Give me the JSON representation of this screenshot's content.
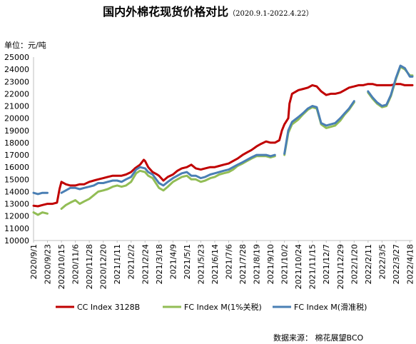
{
  "chart_data": {
    "type": "line",
    "title": "国内外棉花现货价格对比",
    "subtitle": "（2020.9.1-2022.4.22）",
    "ylabel": "单位：元/吨",
    "ylim": [
      10000,
      25000
    ],
    "y_ticks": [
      10000,
      11000,
      12000,
      13000,
      14000,
      15000,
      16000,
      17000,
      18000,
      19000,
      20000,
      21000,
      22000,
      23000,
      24000,
      25000
    ],
    "x_range": [
      "2020-09-01",
      "2022-04-22"
    ],
    "x_ticks": [
      "2020/9/1",
      "2020/9/23",
      "2020/10/15",
      "2020/11/6",
      "2020/11/28",
      "2020/12/20",
      "2021/1/11",
      "2021/2/2",
      "2021/2/24",
      "2021/3/18",
      "2021/4/9",
      "2021/5/1",
      "2021/5/23",
      "2021/6/14",
      "2021/7/6",
      "2021/7/28",
      "2021/8/19",
      "2021/9/10",
      "2021/10/2",
      "2021/10/24",
      "2021/11/15",
      "2021/12/7",
      "2021/12/29",
      "2022/1/20",
      "2022/2/11",
      "2022/3/5",
      "2022/3/27",
      "2022/4/18"
    ],
    "grid": false,
    "legend_position": "bottom",
    "series": [
      {
        "name": "CC Index 3128B",
        "color": "#c00000",
        "points": [
          [
            "2020-09-01",
            12850
          ],
          [
            "2020-09-08",
            12800
          ],
          [
            "2020-09-15",
            12900
          ],
          [
            "2020-09-23",
            13000
          ],
          [
            "2020-10-01",
            13000
          ],
          [
            "2020-10-08",
            13100
          ],
          [
            "2020-10-12",
            14200
          ],
          [
            "2020-10-15",
            14800
          ],
          [
            "2020-10-22",
            14600
          ],
          [
            "2020-10-29",
            14500
          ],
          [
            "2020-11-06",
            14500
          ],
          [
            "2020-11-13",
            14600
          ],
          [
            "2020-11-20",
            14600
          ],
          [
            "2020-11-28",
            14800
          ],
          [
            "2020-12-05",
            14900
          ],
          [
            "2020-12-12",
            15000
          ],
          [
            "2020-12-20",
            15100
          ],
          [
            "2020-12-27",
            15200
          ],
          [
            "2021-01-04",
            15300
          ],
          [
            "2021-01-11",
            15300
          ],
          [
            "2021-01-18",
            15300
          ],
          [
            "2021-01-25",
            15400
          ],
          [
            "2021-02-02",
            15600
          ],
          [
            "2021-02-08",
            15900
          ],
          [
            "2021-02-16",
            16200
          ],
          [
            "2021-02-22",
            16600
          ],
          [
            "2021-02-24",
            16500
          ],
          [
            "2021-03-01",
            16000
          ],
          [
            "2021-03-08",
            15600
          ],
          [
            "2021-03-15",
            15400
          ],
          [
            "2021-03-18",
            15300
          ],
          [
            "2021-03-25",
            14900
          ],
          [
            "2021-04-01",
            15200
          ],
          [
            "2021-04-09",
            15400
          ],
          [
            "2021-04-16",
            15700
          ],
          [
            "2021-04-23",
            15900
          ],
          [
            "2021-05-01",
            16000
          ],
          [
            "2021-05-08",
            16200
          ],
          [
            "2021-05-15",
            15900
          ],
          [
            "2021-05-23",
            15800
          ],
          [
            "2021-05-30",
            15900
          ],
          [
            "2021-06-07",
            16000
          ],
          [
            "2021-06-14",
            16000
          ],
          [
            "2021-06-21",
            16100
          ],
          [
            "2021-06-28",
            16200
          ],
          [
            "2021-07-06",
            16300
          ],
          [
            "2021-07-13",
            16500
          ],
          [
            "2021-07-20",
            16700
          ],
          [
            "2021-07-28",
            17000
          ],
          [
            "2021-08-04",
            17200
          ],
          [
            "2021-08-11",
            17400
          ],
          [
            "2021-08-19",
            17700
          ],
          [
            "2021-08-26",
            17900
          ],
          [
            "2021-09-03",
            18100
          ],
          [
            "2021-09-10",
            18000
          ],
          [
            "2021-09-17",
            18000
          ],
          [
            "2021-09-24",
            18200
          ],
          [
            "2021-09-28",
            19000
          ],
          [
            "2021-10-02",
            19500
          ],
          [
            "2021-10-08",
            20000
          ],
          [
            "2021-10-10",
            21200
          ],
          [
            "2021-10-14",
            22000
          ],
          [
            "2021-10-24",
            22300
          ],
          [
            "2021-11-01",
            22400
          ],
          [
            "2021-11-08",
            22500
          ],
          [
            "2021-11-15",
            22700
          ],
          [
            "2021-11-22",
            22600
          ],
          [
            "2021-11-29",
            22200
          ],
          [
            "2021-12-07",
            21900
          ],
          [
            "2021-12-14",
            22000
          ],
          [
            "2021-12-21",
            22000
          ],
          [
            "2021-12-29",
            22100
          ],
          [
            "2022-01-05",
            22300
          ],
          [
            "2022-01-12",
            22500
          ],
          [
            "2022-01-20",
            22600
          ],
          [
            "2022-01-27",
            22700
          ],
          [
            "2022-02-03",
            22700
          ],
          [
            "2022-02-11",
            22800
          ],
          [
            "2022-02-18",
            22800
          ],
          [
            "2022-02-25",
            22700
          ],
          [
            "2022-03-05",
            22700
          ],
          [
            "2022-03-12",
            22700
          ],
          [
            "2022-03-19",
            22700
          ],
          [
            "2022-03-27",
            22800
          ],
          [
            "2022-04-03",
            22800
          ],
          [
            "2022-04-10",
            22700
          ],
          [
            "2022-04-18",
            22700
          ],
          [
            "2022-04-22",
            22700
          ]
        ]
      },
      {
        "name": "FC Index M(1%关税)",
        "color": "#92bd55",
        "points": [
          [
            "2020-09-01",
            12300
          ],
          [
            "2020-09-08",
            12100
          ],
          [
            "2020-09-15",
            12300
          ],
          [
            "2020-09-23",
            12200
          ],
          [
            "2020-10-04",
            null
          ],
          [
            "2020-10-15",
            12600
          ],
          [
            "2020-10-22",
            12900
          ],
          [
            "2020-10-29",
            13100
          ],
          [
            "2020-11-06",
            13300
          ],
          [
            "2020-11-13",
            13000
          ],
          [
            "2020-11-20",
            13200
          ],
          [
            "2020-11-28",
            13400
          ],
          [
            "2020-12-05",
            13700
          ],
          [
            "2020-12-12",
            14000
          ],
          [
            "2020-12-20",
            14100
          ],
          [
            "2020-12-27",
            14200
          ],
          [
            "2021-01-04",
            14400
          ],
          [
            "2021-01-11",
            14500
          ],
          [
            "2021-01-18",
            14400
          ],
          [
            "2021-01-25",
            14500
          ],
          [
            "2021-02-02",
            14800
          ],
          [
            "2021-02-10",
            15500
          ],
          [
            "2021-02-16",
            15700
          ],
          [
            "2021-02-24",
            15600
          ],
          [
            "2021-03-01",
            15300
          ],
          [
            "2021-03-08",
            15100
          ],
          [
            "2021-03-18",
            14300
          ],
          [
            "2021-03-25",
            14100
          ],
          [
            "2021-04-01",
            14400
          ],
          [
            "2021-04-09",
            14800
          ],
          [
            "2021-04-16",
            15000
          ],
          [
            "2021-04-23",
            15200
          ],
          [
            "2021-05-01",
            15300
          ],
          [
            "2021-05-08",
            15000
          ],
          [
            "2021-05-15",
            15000
          ],
          [
            "2021-05-23",
            14800
          ],
          [
            "2021-05-30",
            14900
          ],
          [
            "2021-06-07",
            15100
          ],
          [
            "2021-06-14",
            15200
          ],
          [
            "2021-06-21",
            15400
          ],
          [
            "2021-06-28",
            15500
          ],
          [
            "2021-07-06",
            15600
          ],
          [
            "2021-07-13",
            15800
          ],
          [
            "2021-07-20",
            16100
          ],
          [
            "2021-07-28",
            16300
          ],
          [
            "2021-08-04",
            16500
          ],
          [
            "2021-08-11",
            16700
          ],
          [
            "2021-08-19",
            16900
          ],
          [
            "2021-08-26",
            16900
          ],
          [
            "2021-09-03",
            16900
          ],
          [
            "2021-09-10",
            16800
          ],
          [
            "2021-09-17",
            16900
          ],
          [
            "2021-09-22",
            null
          ],
          [
            "2021-10-02",
            17000
          ],
          [
            "2021-10-08",
            18800
          ],
          [
            "2021-10-14",
            19500
          ],
          [
            "2021-10-24",
            19900
          ],
          [
            "2021-10-31",
            20300
          ],
          [
            "2021-11-08",
            20700
          ],
          [
            "2021-11-15",
            20900
          ],
          [
            "2021-11-22",
            20800
          ],
          [
            "2021-11-29",
            19500
          ],
          [
            "2021-12-07",
            19200
          ],
          [
            "2021-12-14",
            19300
          ],
          [
            "2021-12-21",
            19400
          ],
          [
            "2021-12-29",
            19800
          ],
          [
            "2022-01-05",
            20300
          ],
          [
            "2022-01-12",
            20700
          ],
          [
            "2022-01-20",
            21300
          ],
          [
            "2022-01-27",
            null
          ],
          [
            "2022-02-11",
            22100
          ],
          [
            "2022-02-18",
            21600
          ],
          [
            "2022-02-25",
            21200
          ],
          [
            "2022-03-05",
            20900
          ],
          [
            "2022-03-12",
            21000
          ],
          [
            "2022-03-19",
            21800
          ],
          [
            "2022-03-27",
            23200
          ],
          [
            "2022-04-03",
            24200
          ],
          [
            "2022-04-10",
            24000
          ],
          [
            "2022-04-18",
            23500
          ],
          [
            "2022-04-22",
            23500
          ]
        ]
      },
      {
        "name": "FC Index M(滑准税)",
        "color": "#4a7fb4",
        "points": [
          [
            "2020-09-01",
            13900
          ],
          [
            "2020-09-08",
            13800
          ],
          [
            "2020-09-15",
            13900
          ],
          [
            "2020-09-23",
            13900
          ],
          [
            "2020-10-04",
            null
          ],
          [
            "2020-10-15",
            13900
          ],
          [
            "2020-10-22",
            14100
          ],
          [
            "2020-10-29",
            14300
          ],
          [
            "2020-11-06",
            14300
          ],
          [
            "2020-11-13",
            14200
          ],
          [
            "2020-11-20",
            14300
          ],
          [
            "2020-11-28",
            14400
          ],
          [
            "2020-12-05",
            14500
          ],
          [
            "2020-12-12",
            14700
          ],
          [
            "2020-12-20",
            14700
          ],
          [
            "2020-12-27",
            14800
          ],
          [
            "2021-01-04",
            14900
          ],
          [
            "2021-01-11",
            14900
          ],
          [
            "2021-01-18",
            14800
          ],
          [
            "2021-01-25",
            15000
          ],
          [
            "2021-02-02",
            15200
          ],
          [
            "2021-02-10",
            15800
          ],
          [
            "2021-02-16",
            16000
          ],
          [
            "2021-02-24",
            15900
          ],
          [
            "2021-03-01",
            15600
          ],
          [
            "2021-03-08",
            15400
          ],
          [
            "2021-03-18",
            14700
          ],
          [
            "2021-03-25",
            14500
          ],
          [
            "2021-04-01",
            14800
          ],
          [
            "2021-04-09",
            15100
          ],
          [
            "2021-04-16",
            15300
          ],
          [
            "2021-04-23",
            15500
          ],
          [
            "2021-05-01",
            15600
          ],
          [
            "2021-05-08",
            15300
          ],
          [
            "2021-05-15",
            15300
          ],
          [
            "2021-05-23",
            15100
          ],
          [
            "2021-05-30",
            15200
          ],
          [
            "2021-06-07",
            15400
          ],
          [
            "2021-06-14",
            15500
          ],
          [
            "2021-06-21",
            15600
          ],
          [
            "2021-06-28",
            15700
          ],
          [
            "2021-07-06",
            15800
          ],
          [
            "2021-07-13",
            16000
          ],
          [
            "2021-07-20",
            16200
          ],
          [
            "2021-07-28",
            16400
          ],
          [
            "2021-08-04",
            16600
          ],
          [
            "2021-08-11",
            16800
          ],
          [
            "2021-08-19",
            17000
          ],
          [
            "2021-08-26",
            17000
          ],
          [
            "2021-09-03",
            17000
          ],
          [
            "2021-09-10",
            16900
          ],
          [
            "2021-09-17",
            17000
          ],
          [
            "2021-09-22",
            null
          ],
          [
            "2021-10-02",
            17100
          ],
          [
            "2021-10-08",
            19000
          ],
          [
            "2021-10-14",
            19700
          ],
          [
            "2021-10-24",
            20100
          ],
          [
            "2021-10-31",
            20400
          ],
          [
            "2021-11-08",
            20800
          ],
          [
            "2021-11-15",
            21000
          ],
          [
            "2021-11-22",
            20900
          ],
          [
            "2021-11-29",
            19600
          ],
          [
            "2021-12-07",
            19400
          ],
          [
            "2021-12-14",
            19500
          ],
          [
            "2021-12-21",
            19600
          ],
          [
            "2021-12-29",
            20000
          ],
          [
            "2022-01-05",
            20400
          ],
          [
            "2022-01-12",
            20800
          ],
          [
            "2022-01-20",
            21400
          ],
          [
            "2022-01-27",
            null
          ],
          [
            "2022-02-11",
            22200
          ],
          [
            "2022-02-18",
            21700
          ],
          [
            "2022-02-25",
            21300
          ],
          [
            "2022-03-05",
            21000
          ],
          [
            "2022-03-12",
            21100
          ],
          [
            "2022-03-19",
            21900
          ],
          [
            "2022-03-27",
            23300
          ],
          [
            "2022-04-03",
            24300
          ],
          [
            "2022-04-10",
            24100
          ],
          [
            "2022-04-18",
            23400
          ],
          [
            "2022-04-22",
            23400
          ]
        ]
      }
    ],
    "source": "数据来源：  棉花展望BCO"
  }
}
